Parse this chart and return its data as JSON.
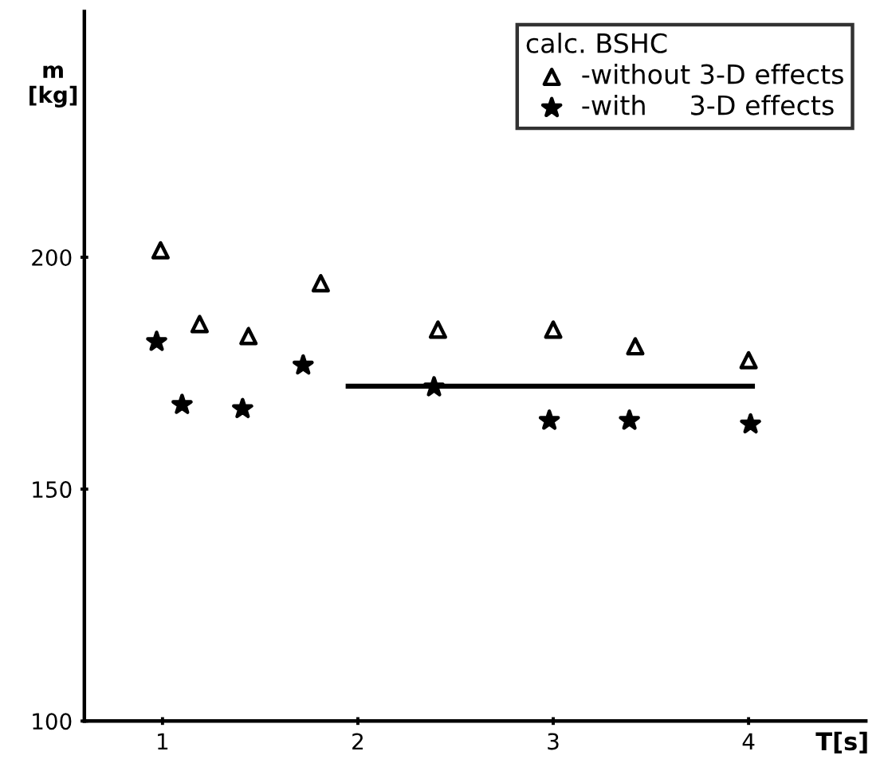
{
  "chart_data": {
    "type": "scatter",
    "ylabel": "m\n[kg]",
    "xlabel": "T[s]",
    "legend_title": "calc. BSHC",
    "legend": "top right",
    "grid": false,
    "xlim": [
      0.6,
      4.6
    ],
    "ylim": [
      100,
      253
    ],
    "xticks": [
      1,
      2,
      3,
      4
    ],
    "yticks": [
      100,
      150,
      200
    ],
    "series": [
      {
        "name": "-without 3-D effects",
        "marker": "triangle",
        "color": "#000000",
        "x": [
          0.99,
          1.19,
          1.44,
          1.81,
          2.41,
          3.0,
          3.42,
          4.0
        ],
        "values": [
          201.5,
          185.6,
          183.0,
          194.4,
          184.4,
          184.4,
          180.8,
          177.8
        ]
      },
      {
        "name": "-with     3-D effects",
        "marker": "star",
        "color": "#000000",
        "x": [
          0.97,
          1.1,
          1.41,
          1.72,
          2.39,
          2.98,
          3.39,
          4.01
        ],
        "values": [
          181.8,
          168.2,
          167.3,
          176.7,
          172.0,
          164.8,
          164.8,
          164.0
        ]
      },
      {
        "type": "line",
        "marker": "none",
        "line_style": "solid",
        "color": "#000000",
        "x": [
          1.95,
          4.02
        ],
        "values": [
          172.2,
          172.2
        ]
      }
    ]
  }
}
